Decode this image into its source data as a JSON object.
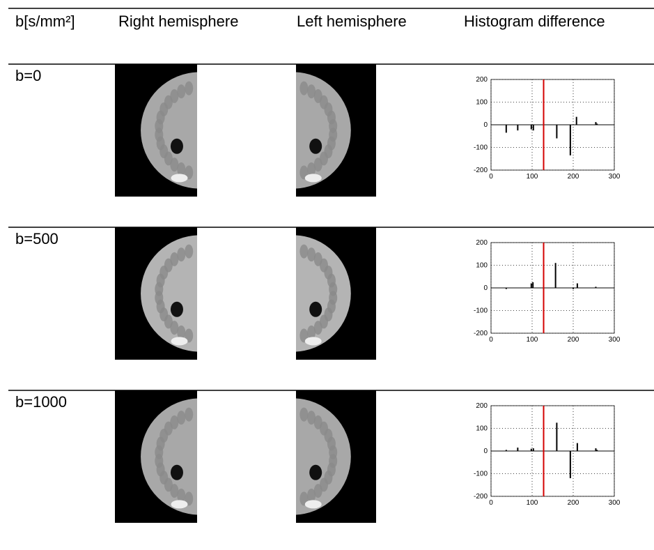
{
  "table": {
    "header": [
      "b[s/mm²]",
      "Right hemisphere",
      "Left hemisphere",
      "Histogram difference"
    ],
    "rows": [
      "b=0",
      "b=500",
      "b=1000"
    ]
  },
  "chart_data": [
    {
      "type": "stem",
      "x": [
        37,
        65,
        98,
        103,
        128,
        160,
        193,
        208,
        255,
        258
      ],
      "values": [
        -35,
        -25,
        -20,
        -25,
        15,
        -60,
        -135,
        35,
        12,
        5
      ],
      "color": "#000000",
      "xlim": [
        0,
        300
      ],
      "ylim": [
        -200,
        200
      ],
      "xticks": [
        0,
        100,
        200,
        300
      ],
      "yticks": [
        -200,
        -100,
        0,
        100,
        200
      ],
      "grid": true,
      "marker_x": 128,
      "marker_color": "#d40000"
    },
    {
      "type": "stem",
      "x": [
        37,
        98,
        102,
        128,
        157,
        200,
        210,
        255
      ],
      "values": [
        -5,
        20,
        25,
        -10,
        110,
        -5,
        20,
        5
      ],
      "color": "#000000",
      "xlim": [
        0,
        300
      ],
      "ylim": [
        -200,
        200
      ],
      "xticks": [
        0,
        100,
        200,
        300
      ],
      "yticks": [
        -200,
        -100,
        0,
        100,
        200
      ],
      "grid": true,
      "marker_x": 128,
      "marker_color": "#d40000"
    },
    {
      "type": "stem",
      "x": [
        37,
        65,
        98,
        103,
        128,
        160,
        193,
        210,
        255,
        258
      ],
      "values": [
        5,
        15,
        10,
        12,
        -40,
        125,
        -120,
        35,
        12,
        5
      ],
      "color": "#000000",
      "xlim": [
        0,
        300
      ],
      "ylim": [
        -200,
        200
      ],
      "xticks": [
        0,
        100,
        200,
        300
      ],
      "yticks": [
        -200,
        -100,
        0,
        100,
        200
      ],
      "grid": true,
      "marker_x": 128,
      "marker_color": "#d40000"
    }
  ]
}
